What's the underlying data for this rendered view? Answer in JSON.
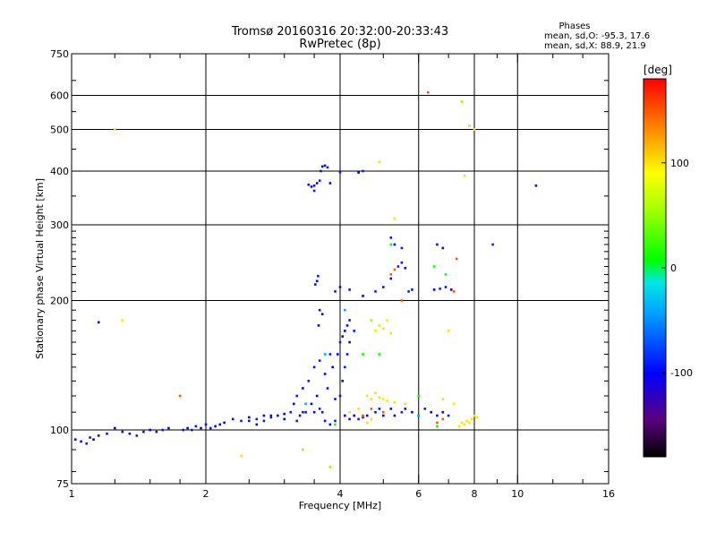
{
  "chart_data": {
    "type": "scatter",
    "title": "Tromsø 20160316 20:32:00-20:33:43",
    "subtitle": "RwPretec (8p)",
    "xlabel": "Frequency [MHz]",
    "ylabel": "Stationary phase Virtual Height [km]",
    "xscale": "log2",
    "yscale": "log",
    "xlim": [
      1,
      16
    ],
    "ylim": [
      75,
      750
    ],
    "x_ticks": [
      1,
      2,
      4,
      6,
      8,
      10,
      16
    ],
    "x_tick_labels": [
      "1",
      "2",
      "4",
      "6",
      "8",
      "10",
      "16"
    ],
    "y_ticks": [
      75,
      100,
      200,
      300,
      400,
      500,
      600,
      750
    ],
    "y_tick_labels": [
      "75",
      "100",
      "200",
      "300",
      "400",
      "500",
      "600",
      "750"
    ],
    "x_grid": [
      2,
      4,
      6,
      8,
      10
    ],
    "y_grid": [
      100,
      200,
      300,
      400,
      500,
      600
    ],
    "grid": true,
    "phases": {
      "header": "Phases",
      "o_line": "mean, sd,O: -95.3, 17.6",
      "x_line": "mean, sd,X:  88.9, 21.9"
    },
    "colorbar": {
      "unit": "[deg]",
      "range": [
        -180,
        180
      ],
      "ticks": [
        100,
        0,
        -100
      ],
      "tick_labels": [
        "100",
        "0",
        "-100"
      ]
    },
    "series": [
      {
        "points": [
          [
            1.02,
            95,
            -95
          ],
          [
            1.05,
            94,
            -100
          ],
          [
            1.08,
            93,
            -90
          ],
          [
            1.1,
            96,
            -95
          ],
          [
            1.12,
            95,
            -100
          ],
          [
            1.15,
            97,
            -95
          ],
          [
            1.2,
            98,
            -90
          ],
          [
            1.25,
            101,
            -100
          ],
          [
            1.3,
            99,
            -95
          ],
          [
            1.35,
            98,
            -100
          ],
          [
            1.4,
            97,
            -90
          ],
          [
            1.45,
            99,
            -95
          ],
          [
            1.5,
            100,
            -100
          ],
          [
            1.55,
            99,
            -95
          ],
          [
            1.6,
            100,
            -90
          ],
          [
            1.65,
            101,
            -100
          ],
          [
            1.15,
            178,
            -100
          ],
          [
            1.78,
            100,
            -95
          ],
          [
            1.82,
            101,
            -100
          ],
          [
            1.86,
            100,
            -90
          ],
          [
            1.9,
            102,
            -95
          ],
          [
            1.95,
            101,
            -100
          ],
          [
            2.0,
            103,
            -95
          ],
          [
            2.05,
            101,
            -90
          ],
          [
            2.1,
            102,
            -100
          ],
          [
            2.15,
            103,
            -95
          ],
          [
            2.2,
            104,
            -100
          ],
          [
            2.3,
            106,
            -95
          ],
          [
            2.4,
            105,
            -90
          ],
          [
            2.5,
            107,
            -100
          ],
          [
            2.6,
            106,
            -95
          ],
          [
            2.7,
            108,
            -100
          ],
          [
            2.8,
            107,
            -90
          ],
          [
            2.9,
            108,
            -95
          ],
          [
            3.0,
            109,
            -100
          ],
          [
            3.1,
            110,
            -95
          ],
          [
            3.15,
            115,
            -100
          ],
          [
            3.2,
            120,
            -90
          ],
          [
            3.25,
            108,
            -95
          ],
          [
            3.3,
            125,
            -100
          ],
          [
            3.35,
            110,
            -95
          ],
          [
            3.4,
            130,
            -90
          ],
          [
            3.45,
            115,
            -100
          ],
          [
            3.5,
            140,
            -95
          ],
          [
            3.55,
            120,
            -100
          ],
          [
            3.6,
            145,
            -90
          ],
          [
            3.65,
            110,
            -95
          ],
          [
            3.7,
            135,
            -100
          ],
          [
            3.75,
            125,
            -95
          ],
          [
            3.8,
            150,
            -90
          ],
          [
            3.85,
            140,
            -100
          ],
          [
            3.9,
            118,
            -95
          ],
          [
            3.95,
            150,
            -100
          ],
          [
            4.0,
            160,
            -90
          ],
          [
            4.05,
            165,
            -95
          ],
          [
            4.1,
            170,
            -100
          ],
          [
            4.15,
            175,
            -95
          ],
          [
            4.2,
            180,
            -90
          ],
          [
            4.1,
            108,
            -100
          ],
          [
            4.2,
            106,
            -95
          ],
          [
            4.3,
            108,
            -100
          ],
          [
            4.4,
            106,
            -90
          ],
          [
            4.5,
            107,
            -95
          ],
          [
            4.6,
            108,
            -100
          ],
          [
            4.8,
            110,
            -95
          ],
          [
            4.9,
            112,
            -90
          ],
          [
            5.0,
            108,
            -100
          ],
          [
            5.2,
            112,
            -95
          ],
          [
            5.3,
            108,
            -100
          ],
          [
            5.5,
            110,
            -90
          ],
          [
            5.6,
            112,
            -95
          ],
          [
            5.8,
            110,
            -100
          ],
          [
            6.0,
            108,
            -95
          ],
          [
            6.2,
            112,
            -90
          ],
          [
            6.4,
            110,
            -100
          ],
          [
            6.6,
            108,
            -95
          ],
          [
            6.8,
            110,
            -100
          ],
          [
            7.0,
            108,
            -90
          ],
          [
            3.5,
            370,
            -95
          ],
          [
            3.55,
            375,
            -100
          ],
          [
            3.6,
            380,
            -90
          ],
          [
            3.62,
            400,
            -95
          ],
          [
            3.65,
            410,
            -100
          ],
          [
            3.7,
            412,
            -95
          ],
          [
            3.75,
            408,
            -90
          ],
          [
            3.8,
            375,
            -100
          ],
          [
            3.4,
            372,
            -95
          ],
          [
            3.45,
            368,
            -100
          ],
          [
            3.5,
            360,
            -90
          ],
          [
            3.52,
            218,
            -95
          ],
          [
            3.55,
            222,
            -100
          ],
          [
            3.57,
            228,
            -90
          ],
          [
            3.6,
            190,
            -95
          ],
          [
            3.58,
            175,
            -100
          ],
          [
            3.65,
            186,
            -95
          ],
          [
            3.9,
            210,
            -90
          ],
          [
            4.0,
            215,
            -100
          ],
          [
            4.2,
            212,
            -95
          ],
          [
            4.5,
            205,
            -100
          ],
          [
            4.8,
            210,
            -90
          ],
          [
            5.0,
            215,
            -95
          ],
          [
            5.2,
            225,
            -100
          ],
          [
            5.4,
            240,
            -90
          ],
          [
            5.5,
            245,
            -95
          ],
          [
            5.6,
            238,
            -100
          ],
          [
            5.7,
            210,
            -90
          ],
          [
            5.8,
            212,
            -95
          ],
          [
            6.5,
            212,
            -100
          ],
          [
            6.7,
            213,
            -90
          ],
          [
            6.9,
            215,
            -95
          ],
          [
            7.1,
            212,
            -100
          ],
          [
            4.0,
            398,
            -95
          ],
          [
            4.4,
            397,
            -100
          ],
          [
            4.5,
            400,
            -90
          ],
          [
            5.2,
            280,
            -95
          ],
          [
            5.3,
            270,
            -100
          ],
          [
            5.5,
            265,
            -90
          ],
          [
            6.6,
            270,
            -95
          ],
          [
            6.8,
            265,
            -100
          ],
          [
            8.8,
            270,
            -90
          ],
          [
            11.0,
            370,
            -95
          ],
          [
            3.5,
            110,
            -100
          ],
          [
            3.6,
            112,
            -90
          ],
          [
            3.7,
            105,
            -95
          ],
          [
            3.8,
            103,
            -100
          ],
          [
            3.9,
            105,
            -90
          ],
          [
            4.0,
            120,
            -95
          ],
          [
            4.05,
            130,
            -100
          ],
          [
            4.1,
            140,
            -90
          ],
          [
            4.15,
            150,
            -95
          ],
          [
            4.2,
            160,
            -100
          ],
          [
            4.3,
            170,
            -90
          ],
          [
            2.5,
            105,
            -95
          ],
          [
            2.6,
            103,
            -100
          ],
          [
            2.7,
            105,
            -90
          ],
          [
            2.8,
            108,
            -95
          ],
          [
            3.0,
            106,
            -100
          ],
          [
            3.2,
            105,
            -90
          ],
          [
            3.3,
            110,
            -95
          ]
        ]
      },
      {
        "points": [
          [
            4.6,
            120,
            100
          ],
          [
            4.7,
            118,
            100
          ],
          [
            4.8,
            122,
            100
          ],
          [
            4.9,
            119,
            100
          ],
          [
            5.0,
            118,
            100
          ],
          [
            5.1,
            117,
            100
          ],
          [
            5.3,
            116,
            100
          ],
          [
            5.6,
            115,
            100
          ],
          [
            4.2,
            110,
            100
          ],
          [
            4.4,
            112,
            100
          ],
          [
            4.5,
            108,
            100
          ],
          [
            4.6,
            104,
            100
          ],
          [
            4.7,
            106,
            100
          ],
          [
            4.8,
            170,
            100
          ],
          [
            4.9,
            175,
            100
          ],
          [
            5.0,
            172,
            100
          ],
          [
            5.1,
            180,
            100
          ],
          [
            5.2,
            168,
            100
          ],
          [
            7.4,
            102,
            100
          ],
          [
            7.5,
            104,
            100
          ],
          [
            7.6,
            103,
            100
          ],
          [
            7.7,
            105,
            100
          ],
          [
            7.8,
            104,
            100
          ],
          [
            7.9,
            106,
            100
          ],
          [
            8.0,
            108,
            100
          ],
          [
            8.1,
            107,
            100
          ],
          [
            7.2,
            115,
            100
          ],
          [
            6.8,
            118,
            100
          ],
          [
            7.0,
            170,
            100
          ],
          [
            1.3,
            180,
            100
          ],
          [
            7.6,
            390,
            100
          ],
          [
            8.0,
            500,
            100
          ],
          [
            1.25,
            500,
            100
          ],
          [
            2.4,
            87,
            100
          ],
          [
            4.9,
            420,
            100
          ],
          [
            5.3,
            310,
            100
          ]
        ]
      },
      {
        "points": [
          [
            6.3,
            610,
            150
          ],
          [
            5.3,
            236,
            150
          ],
          [
            5.2,
            230,
            150
          ],
          [
            6.6,
            104,
            150
          ],
          [
            6.8,
            106,
            150
          ],
          [
            4.5,
            108,
            150
          ],
          [
            4.7,
            112,
            150
          ],
          [
            5.0,
            110,
            150
          ],
          [
            7.3,
            250,
            150
          ],
          [
            7.2,
            210,
            150
          ],
          [
            5.5,
            200,
            150
          ],
          [
            1.75,
            120,
            150
          ]
        ]
      },
      {
        "points": [
          [
            5.2,
            270,
            10
          ],
          [
            6.5,
            240,
            10
          ],
          [
            6.9,
            230,
            10
          ],
          [
            4.5,
            150,
            10
          ],
          [
            6.0,
            120,
            10
          ],
          [
            6.6,
            102,
            10
          ],
          [
            3.9,
            103,
            10
          ],
          [
            4.9,
            150,
            10
          ]
        ]
      },
      {
        "points": [
          [
            7.5,
            580,
            50
          ],
          [
            3.3,
            90,
            50
          ],
          [
            3.8,
            82,
            50
          ],
          [
            7.8,
            510,
            50
          ],
          [
            4.7,
            180,
            50
          ]
        ]
      },
      {
        "points": [
          [
            3.7,
            150,
            -40
          ],
          [
            6.0,
            108,
            -40
          ],
          [
            4.1,
            190,
            -40
          ],
          [
            3.35,
            115,
            -40
          ]
        ]
      }
    ]
  }
}
